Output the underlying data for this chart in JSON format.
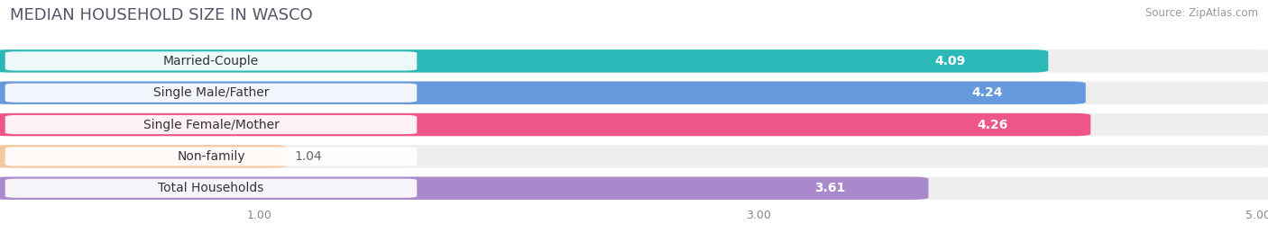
{
  "title": "MEDIAN HOUSEHOLD SIZE IN WASCO",
  "source": "Source: ZipAtlas.com",
  "categories": [
    "Married-Couple",
    "Single Male/Father",
    "Single Female/Mother",
    "Non-family",
    "Total Households"
  ],
  "values": [
    4.09,
    4.24,
    4.26,
    1.04,
    3.61
  ],
  "bar_colors": [
    "#2db8b8",
    "#6699dd",
    "#ee5588",
    "#f5c8a0",
    "#aa88cc"
  ],
  "label_text_colors": [
    "#333333",
    "#333333",
    "#333333",
    "#996633",
    "#333333"
  ],
  "xlim_min": 0,
  "xlim_max": 5.2,
  "data_max": 5.0,
  "xticks": [
    1.0,
    3.0,
    5.0
  ],
  "title_fontsize": 13,
  "label_fontsize": 10,
  "value_fontsize": 10,
  "background_color": "#ffffff",
  "bar_background_color": "#eeeeee"
}
